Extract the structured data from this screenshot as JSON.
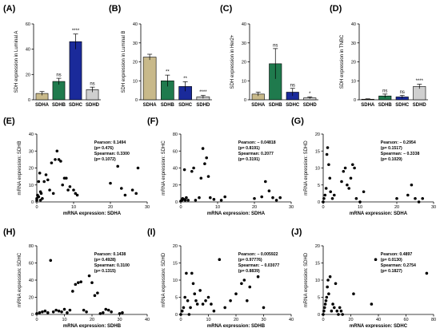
{
  "chart_data": [
    {
      "id": "A",
      "type": "bar",
      "panel_label": "(A)",
      "ylabel": "SDH expression in Luminal A",
      "categories": [
        "SDHA",
        "SDHB",
        "SDHC",
        "SDHD"
      ],
      "values": [
        5,
        14.5,
        46,
        8
      ],
      "errors": [
        1.5,
        2.5,
        6,
        2
      ],
      "colors": [
        "#c8b98a",
        "#1f7a4d",
        "#1a2a9a",
        "#cfcfcf"
      ],
      "significance": [
        "",
        "ns",
        "****",
        "ns"
      ],
      "ylim": [
        0,
        60
      ],
      "yticks": [
        0,
        20,
        40,
        60
      ]
    },
    {
      "id": "B",
      "type": "bar",
      "panel_label": "(B)",
      "ylabel": "SDH expression in Luminal B",
      "categories": [
        "SDHA",
        "SDHB",
        "SDHC",
        "SDHD"
      ],
      "values": [
        22.5,
        10,
        7,
        1.5
      ],
      "errors": [
        1.5,
        3,
        2.5,
        0.8
      ],
      "colors": [
        "#c8b98a",
        "#1f7a4d",
        "#1a2a9a",
        "#cfcfcf"
      ],
      "significance": [
        "",
        "**",
        "**",
        "****"
      ],
      "ylim": [
        0,
        40
      ],
      "yticks": [
        0,
        10,
        20,
        30,
        40
      ]
    },
    {
      "id": "C",
      "type": "bar",
      "panel_label": "(C)",
      "ylabel": "SDH expression in Her2+",
      "categories": [
        "SDHA",
        "SDHB",
        "SDHC",
        "SDHD"
      ],
      "values": [
        3,
        19,
        4,
        1
      ],
      "errors": [
        1,
        8,
        2,
        0.5
      ],
      "colors": [
        "#c8b98a",
        "#1f7a4d",
        "#1a2a9a",
        "#cfcfcf"
      ],
      "significance": [
        "",
        "ns",
        "ns",
        "*"
      ],
      "ylim": [
        0,
        40
      ],
      "yticks": [
        0,
        10,
        20,
        30,
        40
      ]
    },
    {
      "id": "D",
      "type": "bar",
      "panel_label": "(D)",
      "ylabel": "SDH expression in TNBC",
      "categories": [
        "SDHA",
        "SDHB",
        "SDHC",
        "SDHD"
      ],
      "values": [
        0.3,
        2,
        1.5,
        7
      ],
      "errors": [
        0.2,
        1,
        0.8,
        1.2
      ],
      "colors": [
        "#c8b98a",
        "#1f7a4d",
        "#1a2a9a",
        "#cfcfcf"
      ],
      "significance": [
        "",
        "ns",
        "ns",
        "****"
      ],
      "ylim": [
        0,
        40
      ],
      "yticks": [
        0,
        10,
        20,
        30,
        40
      ]
    },
    {
      "id": "E",
      "type": "scatter",
      "panel_label": "(E)",
      "xlabel": "mRNA expression: SDHA",
      "ylabel": "mRNA expression: SDHB",
      "xlim": [
        0,
        30
      ],
      "ylim": [
        0,
        40
      ],
      "xticks": [
        0,
        10,
        20,
        30
      ],
      "yticks": [
        0,
        10,
        20,
        30,
        40
      ],
      "stats": [
        "Pearson: 0.1494",
        "(p= 0.476)",
        "Spearman: 0.3300",
        "(p= 0.1072)"
      ],
      "points": [
        [
          0,
          1
        ],
        [
          0,
          2
        ],
        [
          0.2,
          4
        ],
        [
          0.5,
          3
        ],
        [
          0.5,
          12
        ],
        [
          0.8,
          17
        ],
        [
          1,
          1
        ],
        [
          1,
          6
        ],
        [
          1.2,
          5
        ],
        [
          1.5,
          2
        ],
        [
          2,
          12
        ],
        [
          2.5,
          16
        ],
        [
          3,
          13
        ],
        [
          3.5,
          7
        ],
        [
          4,
          23
        ],
        [
          4.5,
          5
        ],
        [
          5,
          25
        ],
        [
          5.5,
          30
        ],
        [
          6,
          25
        ],
        [
          6.5,
          24
        ],
        [
          7,
          10
        ],
        [
          7.5,
          14
        ],
        [
          8,
          14
        ],
        [
          8.5,
          7
        ],
        [
          9,
          9
        ],
        [
          10,
          7
        ],
        [
          10.5,
          5
        ],
        [
          11,
          4
        ],
        [
          20,
          11
        ],
        [
          23,
          8
        ],
        [
          24,
          4
        ],
        [
          26,
          7
        ],
        [
          27,
          5
        ],
        [
          27.5,
          20
        ],
        [
          22,
          21
        ]
      ]
    },
    {
      "id": "F",
      "type": "scatter",
      "panel_label": "(F)",
      "xlabel": "mRNA expression: SDHA",
      "ylabel": "mRNA expression: SDHC",
      "xlim": [
        0,
        30
      ],
      "ylim": [
        0,
        80
      ],
      "xticks": [
        0,
        10,
        20,
        30
      ],
      "yticks": [
        0,
        20,
        40,
        60,
        80
      ],
      "stats": [
        "Pearson: − 0.04818",
        "(p= 0.8191)",
        "Spearman: 0.2077",
        "(p= 0.3191)"
      ],
      "points": [
        [
          0,
          1
        ],
        [
          0.3,
          2
        ],
        [
          0.5,
          4
        ],
        [
          0.8,
          3
        ],
        [
          1,
          38
        ],
        [
          1.2,
          2
        ],
        [
          1.5,
          5
        ],
        [
          2,
          2
        ],
        [
          3,
          36
        ],
        [
          3.5,
          40
        ],
        [
          4,
          2
        ],
        [
          5,
          5
        ],
        [
          5.5,
          28
        ],
        [
          6,
          63
        ],
        [
          6.5,
          45
        ],
        [
          7,
          52
        ],
        [
          7.5,
          30
        ],
        [
          8,
          5
        ],
        [
          9,
          3
        ],
        [
          11,
          2
        ],
        [
          12,
          6
        ],
        [
          20,
          4
        ],
        [
          22,
          6
        ],
        [
          23,
          24
        ],
        [
          24,
          13
        ],
        [
          25,
          5
        ],
        [
          26,
          2
        ],
        [
          27,
          5
        ]
      ]
    },
    {
      "id": "G",
      "type": "scatter",
      "panel_label": "(G)",
      "xlabel": "mRNA expression: SDHA",
      "ylabel": "mRNA expression: SDHD",
      "xlim": [
        0,
        30
      ],
      "ylim": [
        0,
        20
      ],
      "xticks": [
        0,
        10,
        20,
        30
      ],
      "yticks": [
        0,
        5,
        10,
        15,
        20
      ],
      "stats": [
        "Pearson: − 0.2954",
        "(p= 0.1517)",
        "Spearman: − 0.3338",
        "(p= 0.1029)"
      ],
      "points": [
        [
          0,
          0
        ],
        [
          0.2,
          1
        ],
        [
          0.5,
          2
        ],
        [
          0.8,
          4
        ],
        [
          1,
          14
        ],
        [
          1.2,
          16
        ],
        [
          1.5,
          11
        ],
        [
          1.8,
          7
        ],
        [
          2,
          3
        ],
        [
          2.5,
          1
        ],
        [
          3,
          2
        ],
        [
          5,
          6
        ],
        [
          5.5,
          9
        ],
        [
          6,
          10
        ],
        [
          6.5,
          5
        ],
        [
          7,
          4
        ],
        [
          7.5,
          7
        ],
        [
          8,
          11
        ],
        [
          8.5,
          10
        ],
        [
          9,
          1
        ],
        [
          10,
          0
        ],
        [
          11,
          3
        ],
        [
          20,
          1
        ],
        [
          23,
          2
        ],
        [
          24,
          5
        ],
        [
          25,
          1
        ],
        [
          26,
          0
        ],
        [
          27,
          1
        ]
      ]
    },
    {
      "id": "H",
      "type": "scatter",
      "panel_label": "(H)",
      "xlabel": "mRNA expression: SDHB",
      "ylabel": "mRNA expression: SDHC",
      "xlim": [
        0,
        40
      ],
      "ylim": [
        0,
        80
      ],
      "xticks": [
        0,
        10,
        20,
        30,
        40
      ],
      "yticks": [
        0,
        20,
        40,
        60,
        80
      ],
      "stats": [
        "Pearson: 0.1438",
        "(p= 0.4928)",
        "Spearman: 0.3100",
        "(p= 0.1315)"
      ],
      "points": [
        [
          0,
          1
        ],
        [
          1,
          2
        ],
        [
          2,
          3
        ],
        [
          3,
          4
        ],
        [
          4,
          2
        ],
        [
          5,
          63
        ],
        [
          6,
          3
        ],
        [
          7,
          5
        ],
        [
          8,
          4
        ],
        [
          9,
          3
        ],
        [
          10,
          6
        ],
        [
          11,
          2
        ],
        [
          12,
          5
        ],
        [
          13,
          27
        ],
        [
          14,
          35
        ],
        [
          15,
          37
        ],
        [
          16,
          38
        ],
        [
          17,
          5
        ],
        [
          18,
          3
        ],
        [
          19,
          45
        ],
        [
          20,
          37
        ],
        [
          21,
          22
        ],
        [
          22,
          25
        ],
        [
          23,
          1
        ],
        [
          24,
          2
        ],
        [
          25,
          6
        ],
        [
          26,
          5
        ],
        [
          27,
          3
        ],
        [
          30,
          1
        ],
        [
          31,
          2
        ]
      ]
    },
    {
      "id": "I",
      "type": "scatter",
      "panel_label": "(I)",
      "xlabel": "mRNA expression: SDHB",
      "ylabel": "mRNA expression: SDHD",
      "xlim": [
        0,
        40
      ],
      "ylim": [
        0,
        20
      ],
      "xticks": [
        0,
        10,
        20,
        30,
        40
      ],
      "yticks": [
        0,
        5,
        10,
        15,
        20
      ],
      "stats": [
        "Pearson: − 0.005922",
        "(p= 0.97776)",
        "Spearman: − 0.03077",
        "(p= 0.8839)"
      ],
      "points": [
        [
          0,
          0
        ],
        [
          0.5,
          1
        ],
        [
          1,
          2
        ],
        [
          1.5,
          5
        ],
        [
          2,
          12
        ],
        [
          2.5,
          4
        ],
        [
          3,
          0
        ],
        [
          3.5,
          2
        ],
        [
          4,
          12
        ],
        [
          4.5,
          9
        ],
        [
          5,
          6
        ],
        [
          5.5,
          4
        ],
        [
          6,
          3
        ],
        [
          7,
          7
        ],
        [
          8,
          3
        ],
        [
          9,
          4
        ],
        [
          10,
          5
        ],
        [
          11,
          3
        ],
        [
          12,
          1
        ],
        [
          14,
          16
        ],
        [
          16,
          2
        ],
        [
          18,
          4
        ],
        [
          20,
          6
        ],
        [
          22,
          9
        ],
        [
          23,
          10
        ],
        [
          24,
          4
        ],
        [
          25,
          8
        ],
        [
          28,
          11
        ],
        [
          30,
          2
        ]
      ]
    },
    {
      "id": "J",
      "type": "scatter",
      "panel_label": "(J)",
      "xlabel": "mRNA expression: SDHC",
      "ylabel": "mRNA expression: SDHD",
      "xlim": [
        0,
        80
      ],
      "ylim": [
        0,
        20
      ],
      "xticks": [
        0,
        20,
        40,
        60,
        80
      ],
      "yticks": [
        0,
        5,
        10,
        15,
        20
      ],
      "stats": [
        "Pearson: 0.4897",
        "(p= 0.0130)",
        "Spearman: 0.2754",
        "(p= 0.1827)"
      ],
      "points": [
        [
          0,
          0
        ],
        [
          0.5,
          1
        ],
        [
          1,
          2
        ],
        [
          1.5,
          3
        ],
        [
          2,
          4
        ],
        [
          2.5,
          5
        ],
        [
          3,
          8
        ],
        [
          3.5,
          10
        ],
        [
          4,
          6
        ],
        [
          5,
          11
        ],
        [
          6,
          1
        ],
        [
          7,
          3
        ],
        [
          8,
          2
        ],
        [
          9,
          9
        ],
        [
          10,
          1
        ],
        [
          11,
          0
        ],
        [
          12,
          2
        ],
        [
          13,
          1
        ],
        [
          14,
          0
        ],
        [
          22,
          6
        ],
        [
          35,
          3
        ],
        [
          38,
          16
        ],
        [
          75,
          12
        ]
      ]
    }
  ]
}
